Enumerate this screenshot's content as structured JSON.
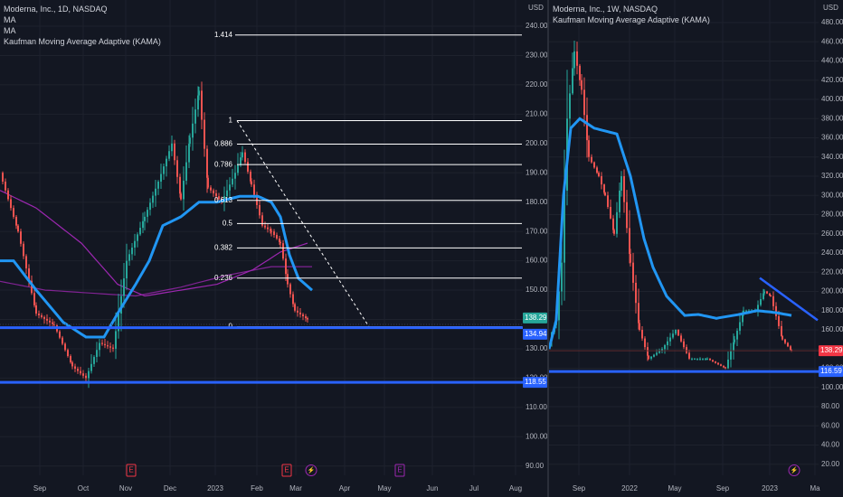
{
  "colors": {
    "background": "#131722",
    "grid": "#1e222d",
    "text": "#d1d4dc",
    "axis_text": "#b2b5be",
    "candle_up": "#26a69a",
    "candle_down": "#ef5350",
    "kama": "#2962ff",
    "kama_light": "#2196f3",
    "ma_purple": "#9c27b0",
    "fib_line": "#ffffff",
    "price_label": "#26a69a",
    "price_label_red": "#f23645",
    "level_label": "#2962ff",
    "earnings_icon": "#f23645",
    "dividend_icon": "#9c27b0"
  },
  "left_chart": {
    "legend": {
      "symbol_line": "Moderna, Inc., 1D, NASDAQ",
      "ma1": "MA",
      "ma2": "MA",
      "kama": "Kaufman Moving Average Adaptive (KAMA)"
    },
    "currency": "USD",
    "price_ticks": [
      "240.00",
      "230.00",
      "220.00",
      "210.00",
      "200.00",
      "190.00",
      "180.00",
      "170.00",
      "160.00",
      "150.00",
      "140.00",
      "130.00",
      "120.00",
      "110.00",
      "100.00",
      "90.00"
    ],
    "time_ticks": [
      "Sep",
      "Oct",
      "Nov",
      "Dec",
      "2023",
      "Feb",
      "Mar",
      "Apr",
      "May",
      "Jun",
      "Jul",
      "Aug"
    ],
    "fib_levels": [
      {
        "label": "1.414",
        "price": 237.0
      },
      {
        "label": "1",
        "price": 207.8
      },
      {
        "label": "0.886",
        "price": 199.8
      },
      {
        "label": "0.786",
        "price": 192.8
      },
      {
        "label": "0.613",
        "price": 180.6
      },
      {
        "label": "0.5",
        "price": 172.7
      },
      {
        "label": "0.382",
        "price": 164.4
      },
      {
        "label": "0.236",
        "price": 154.1
      },
      {
        "label": "0",
        "price": 137.5
      }
    ],
    "price_labels": {
      "current": "138.29",
      "line": "134.94",
      "support": "118.55"
    },
    "event_icons": {
      "earnings": "E",
      "dividend": "⚡"
    }
  },
  "right_chart": {
    "legend": {
      "symbol_line": "Moderna, Inc., 1W, NASDAQ",
      "kama": "Kaufman Moving Average Adaptive (KAMA)"
    },
    "currency": "USD",
    "price_ticks": [
      "480.00",
      "460.00",
      "440.00",
      "420.00",
      "400.00",
      "380.00",
      "360.00",
      "340.00",
      "320.00",
      "300.00",
      "280.00",
      "260.00",
      "240.00",
      "220.00",
      "200.00",
      "180.00",
      "160.00",
      "140.00",
      "120.00",
      "100.00",
      "80.00",
      "60.00",
      "40.00",
      "20.00"
    ],
    "time_ticks": [
      "Sep",
      "2022",
      "May",
      "Sep",
      "2023",
      "Ma"
    ],
    "price_labels": {
      "current": "138.29",
      "support": "116.59"
    },
    "event_icons": {
      "dividend": "⚡"
    }
  }
}
